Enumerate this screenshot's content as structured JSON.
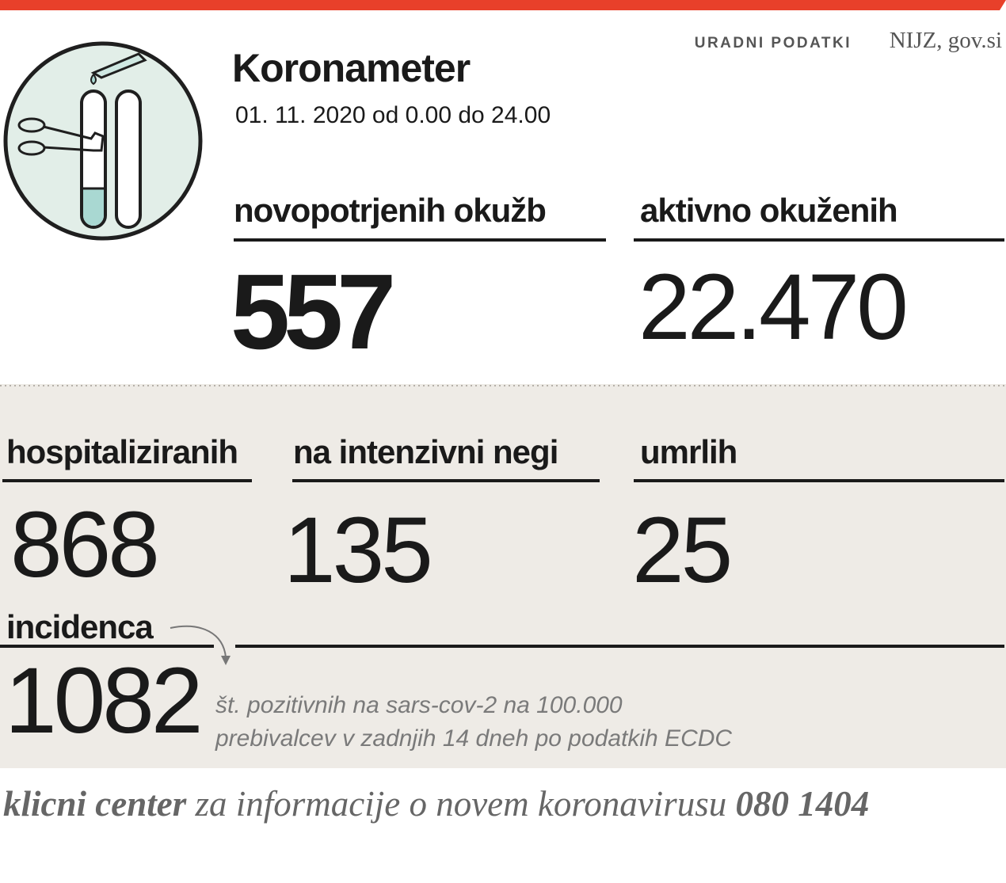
{
  "header": {
    "source_label": "URADNI PODATKI",
    "source": "NIJZ, gov.si",
    "title": "Koronameter",
    "date": "01. 11. 2020 od 0.00 do 24.00"
  },
  "stats": [
    {
      "label": "novopotrjenih okužb",
      "value": "557"
    },
    {
      "label": "aktivno okuženih",
      "value": "22.470"
    },
    {
      "label": "hospitaliziranih",
      "value": "868"
    },
    {
      "label": "na intenzivni negi",
      "value": "135"
    },
    {
      "label": "umrlih",
      "value": "25"
    }
  ],
  "incidence": {
    "label": "incidenca",
    "value": "1082",
    "note": [
      "št. pozitivnih na sars-cov-2 na 100.000",
      "prebivalcev v zadnjih 14 dneh po podatkih ECDC"
    ]
  },
  "footer": {
    "lead": "klicni center",
    "text": "za informacije o novem koronavirusu",
    "phone": "080 1404"
  }
}
